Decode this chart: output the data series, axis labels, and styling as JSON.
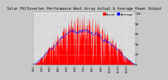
{
  "title": "Solar PV/Inverter Performance West Array Actual & Average Power Output",
  "bg_color": "#c8c8c8",
  "plot_bg": "#d8d8d8",
  "grid_color": "#ffffff",
  "bar_color": "#ff0000",
  "avg_line_color": "#0000ff",
  "legend_actual_color": "#ff0000",
  "legend_avg_color": "#0000ff",
  "title_color": "#000000",
  "tick_color": "#000000",
  "n_points": 365,
  "title_fontsize": 3.8,
  "tick_fontsize": 2.8,
  "legend_fontsize": 3.2,
  "ylim_max": 1.05,
  "xlim_max": 365
}
